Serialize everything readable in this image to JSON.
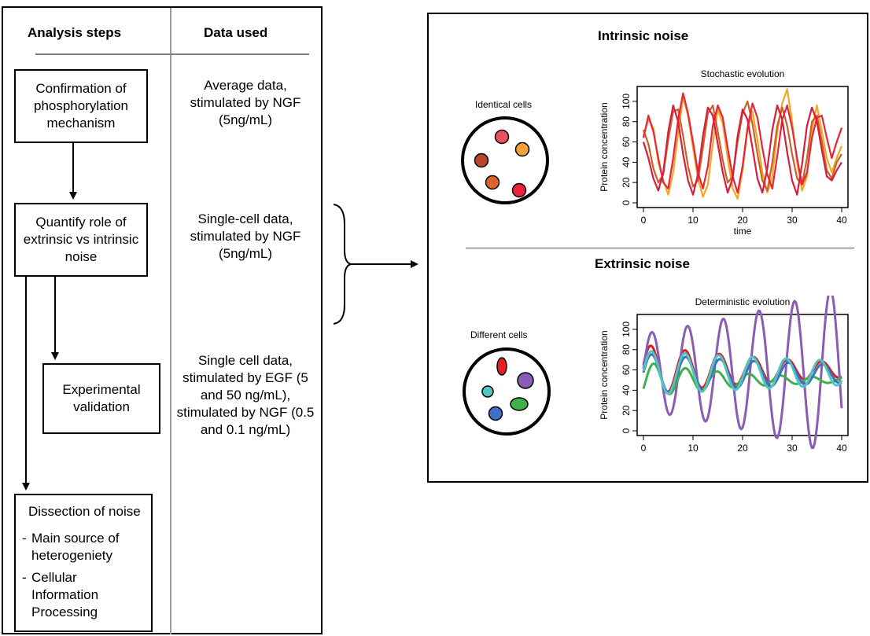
{
  "left_table": {
    "col1_header": "Analysis steps",
    "col2_header": "Data used",
    "steps": [
      {
        "text": "Confirmation of phosphorylation mechanism"
      },
      {
        "text": "Quantify role of extrinsic vs intrinsic noise"
      },
      {
        "text": "Experimental validation"
      },
      {
        "title": "Dissection of noise",
        "bullets": [
          "Main source of heterogeniety",
          "Cellular Information Processing"
        ]
      }
    ],
    "data_used": [
      "Average data, stimulated by NGF (5ng/mL)",
      "Single-cell data, stimulated by NGF (5ng/mL)",
      "Single cell data, stimulated by EGF (5 and 50 ng/mL), stimulated by NGF (0.5 and 0.1 ng/mL)"
    ]
  },
  "right_panel": {
    "intrinsic": {
      "title": "Intrinsic noise",
      "cells_label": "Identical cells",
      "cell_colors": [
        "#e8525a",
        "#f2a23a",
        "#b5482a",
        "#d9642c",
        "#e8243c"
      ]
    },
    "extrinsic": {
      "title": "Extrinsic noise",
      "cells_label": "Different cells",
      "cell_colors": [
        "#e81e25",
        "#8a5cb5",
        "#4dc7c0",
        "#3f6fc2",
        "#3fb04a"
      ]
    }
  },
  "chart_data": [
    {
      "type": "line",
      "title": "Stochastic evolution",
      "xlabel": "time",
      "ylabel": "Protein concentration",
      "xlim": [
        0,
        40
      ],
      "ylim": [
        0,
        110
      ],
      "xticks": [
        0,
        10,
        20,
        30,
        40
      ],
      "yticks": [
        0,
        20,
        40,
        60,
        80,
        100
      ],
      "series": [
        {
          "color": "#f5a623",
          "x": [
            0,
            1,
            2,
            3,
            4,
            5,
            6,
            7,
            8,
            9,
            10,
            11,
            12,
            13,
            14,
            15,
            16,
            17,
            18,
            19,
            20,
            21,
            22,
            23,
            24,
            25,
            26,
            27,
            28,
            29,
            30,
            31,
            32,
            33,
            34,
            35,
            36,
            37,
            38,
            39,
            40
          ],
          "y": [
            66,
            82,
            74,
            40,
            22,
            8,
            30,
            68,
            104,
            86,
            54,
            24,
            6,
            18,
            58,
            92,
            78,
            44,
            14,
            4,
            32,
            72,
            90,
            62,
            30,
            10,
            26,
            70,
            98,
            112,
            80,
            40,
            12,
            26,
            72,
            96,
            70,
            44,
            30,
            44,
            56
          ]
        },
        {
          "color": "#c8622a",
          "x": [
            0,
            1,
            2,
            3,
            4,
            5,
            6,
            7,
            8,
            9,
            10,
            11,
            12,
            13,
            14,
            15,
            16,
            17,
            18,
            19,
            20,
            21,
            22,
            23,
            24,
            25,
            26,
            27,
            28,
            29,
            30,
            31,
            32,
            33,
            34,
            35,
            36,
            37,
            38,
            39,
            40
          ],
          "y": [
            72,
            58,
            34,
            20,
            28,
            62,
            90,
            92,
            66,
            36,
            16,
            22,
            54,
            88,
            96,
            70,
            42,
            20,
            26,
            60,
            88,
            100,
            78,
            48,
            22,
            12,
            40,
            76,
            94,
            76,
            48,
            24,
            18,
            44,
            80,
            86,
            60,
            32,
            24,
            40,
            48
          ]
        },
        {
          "color": "#e8253b",
          "x": [
            0,
            1,
            2,
            3,
            4,
            5,
            6,
            7,
            8,
            9,
            10,
            11,
            12,
            13,
            14,
            15,
            16,
            17,
            18,
            19,
            20,
            21,
            22,
            23,
            24,
            25,
            26,
            27,
            28,
            29,
            30,
            31,
            32,
            33,
            34,
            35,
            36,
            37,
            38,
            39,
            40
          ],
          "y": [
            64,
            86,
            70,
            44,
            20,
            14,
            44,
            82,
            108,
            88,
            60,
            30,
            14,
            36,
            76,
            96,
            84,
            54,
            26,
            10,
            36,
            74,
            98,
            84,
            54,
            28,
            14,
            46,
            82,
            96,
            74,
            44,
            18,
            30,
            64,
            84,
            86,
            64,
            44,
            60,
            74
          ]
        },
        {
          "color": "#d81e3c",
          "x": [
            0,
            1,
            2,
            3,
            4,
            5,
            6,
            7,
            8,
            9,
            10,
            11,
            12,
            13,
            14,
            15,
            16,
            17,
            18,
            19,
            20,
            21,
            22,
            23,
            24,
            25,
            26,
            27,
            28,
            29,
            30,
            31,
            32,
            33,
            34,
            35,
            36,
            37,
            38,
            39,
            40
          ],
          "y": [
            60,
            44,
            24,
            12,
            30,
            70,
            96,
            80,
            48,
            22,
            8,
            28,
            66,
            94,
            86,
            58,
            30,
            10,
            24,
            66,
            92,
            82,
            54,
            24,
            10,
            34,
            72,
            96,
            82,
            50,
            22,
            8,
            38,
            76,
            94,
            80,
            52,
            26,
            22,
            32,
            40
          ]
        }
      ]
    },
    {
      "type": "line",
      "title": "Deterministic evolution",
      "xlabel": "",
      "ylabel": "Protein concentration",
      "xlim": [
        0,
        40
      ],
      "ylim": [
        0,
        110
      ],
      "xticks": [
        0,
        10,
        20,
        30,
        40
      ],
      "yticks": [
        0,
        20,
        40,
        60,
        80,
        100
      ],
      "series": [
        {
          "color": "#e41a1c",
          "y0": 60,
          "amp0": 25,
          "decay": 0.03,
          "period": 6.9,
          "phase": 0.0
        },
        {
          "color": "#8a5cb5",
          "y0": 58,
          "amp0": 38,
          "decay": -0.02,
          "period": 7.2,
          "phase": 0.2
        },
        {
          "color": "#3fb04a",
          "y0": 50,
          "amp0": 18,
          "decay": 0.05,
          "period": 6.4,
          "phase": 0.6
        },
        {
          "color": "#3f6fc2",
          "y0": 56,
          "amp0": 20,
          "decay": 0.02,
          "period": 6.9,
          "phase": 0.15
        },
        {
          "color": "#4dc7c0",
          "y0": 57,
          "amp0": 22,
          "decay": 0.015,
          "period": 6.8,
          "phase": 0.1
        }
      ]
    }
  ]
}
